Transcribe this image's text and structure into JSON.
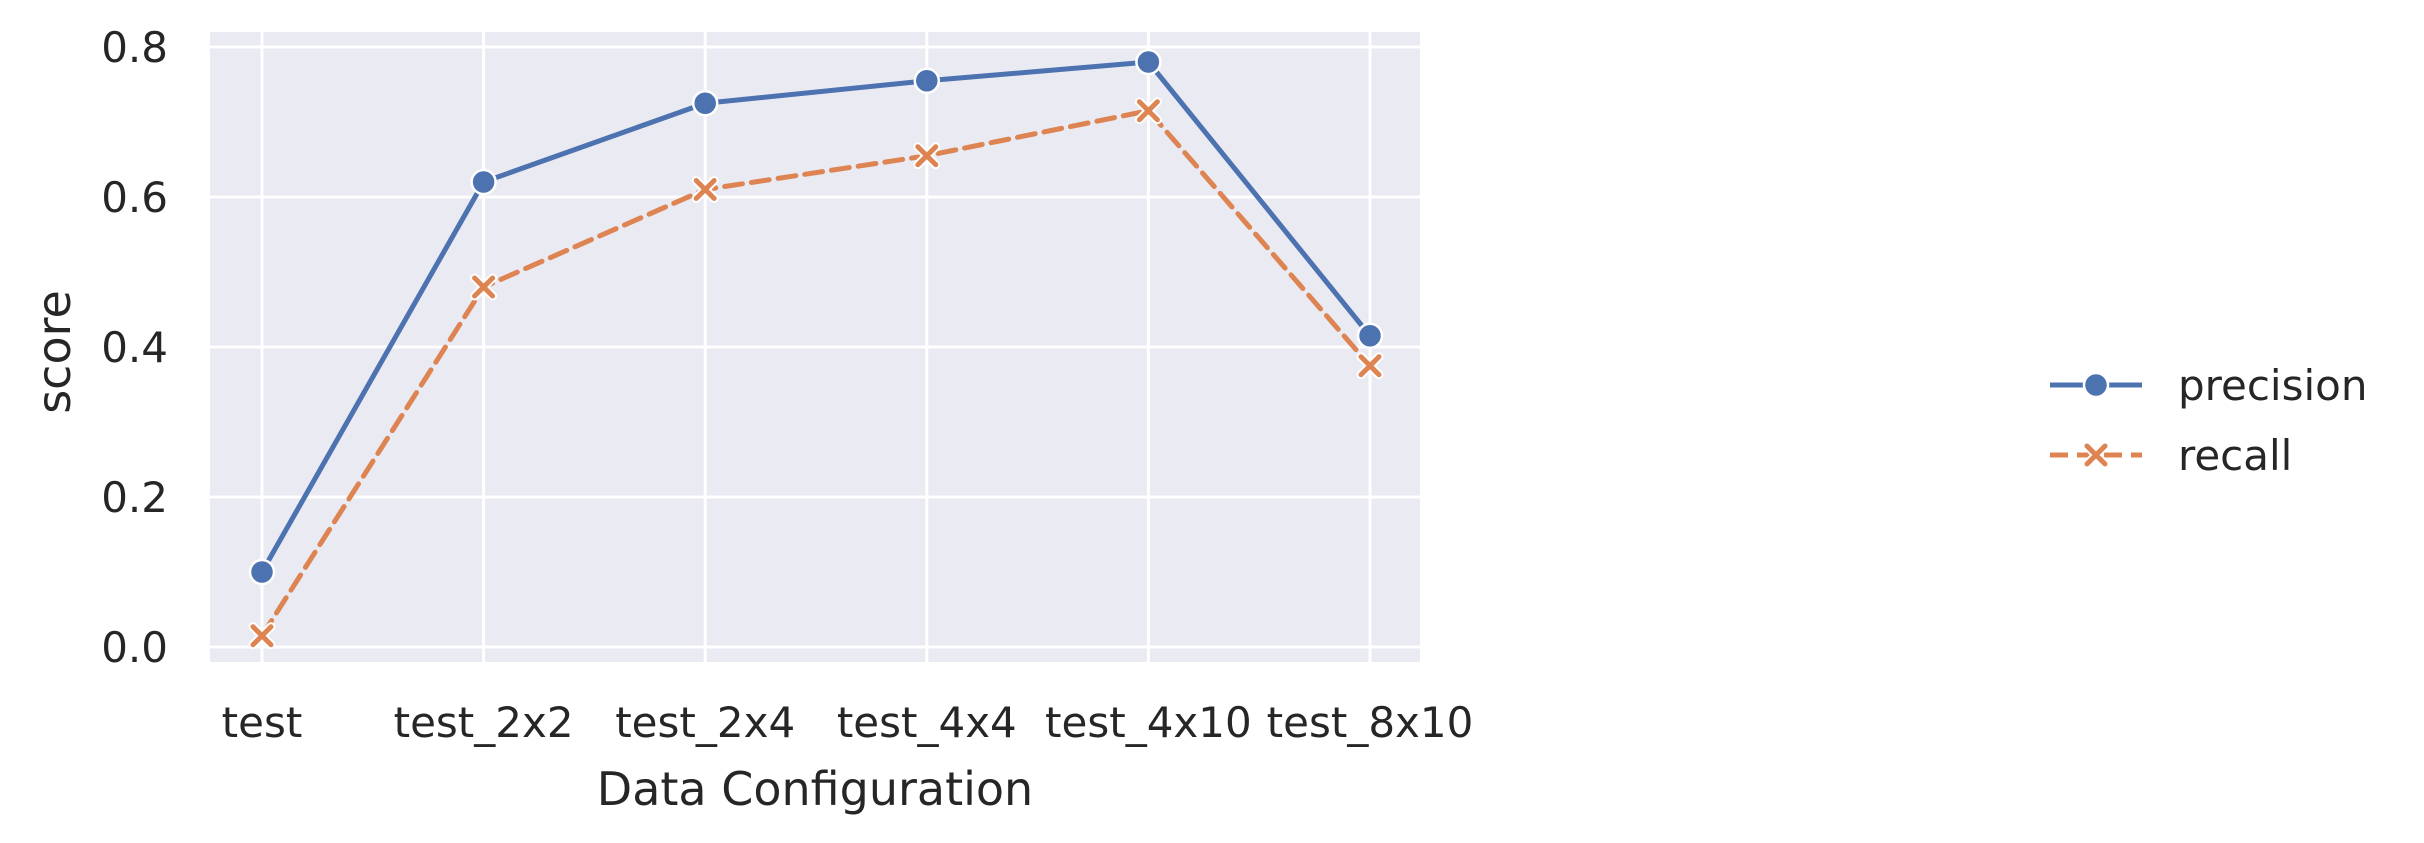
{
  "chart_data": {
    "type": "line",
    "categories": [
      "test",
      "test_2x2",
      "test_2x4",
      "test_4x4",
      "test_4x10",
      "test_8x10"
    ],
    "series": [
      {
        "name": "precision",
        "values": [
          0.1,
          0.62,
          0.725,
          0.755,
          0.78,
          0.415
        ],
        "color": "#4C72B0",
        "marker": "circle",
        "linestyle": "solid"
      },
      {
        "name": "recall",
        "values": [
          0.015,
          0.48,
          0.61,
          0.655,
          0.715,
          0.375
        ],
        "color": "#DD8452",
        "marker": "x",
        "linestyle": "dashed"
      }
    ],
    "xlabel": "Data Configuration",
    "ylabel": "score",
    "ylim": [
      -0.02,
      0.82
    ],
    "yticks": [
      0.0,
      0.2,
      0.4,
      0.6,
      0.8
    ],
    "ytick_labels": [
      "0.0",
      "0.2",
      "0.4",
      "0.6",
      "0.8"
    ],
    "grid": true,
    "background": "#EAEAF2",
    "legend_position": "right"
  }
}
